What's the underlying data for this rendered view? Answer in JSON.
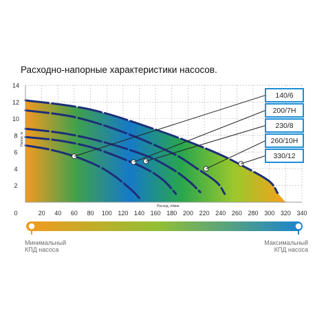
{
  "chart_data": {
    "type": "line",
    "title": "Расходно-напорные характеристики насосов.",
    "xlabel": "Расход, л/мин",
    "ylabel": "Напор, м",
    "xlim": [
      0,
      340
    ],
    "ylim": [
      0,
      14
    ],
    "x_ticks": [
      20,
      40,
      60,
      80,
      100,
      120,
      140,
      160,
      180,
      200,
      220,
      240,
      260,
      280,
      300,
      320,
      340
    ],
    "x_zero_label": "0",
    "y_ticks": [
      2,
      4,
      6,
      8,
      10,
      12,
      14
    ],
    "grid": true,
    "series": [
      {
        "name": "140/6",
        "x": [
          0,
          30,
          60,
          90,
          110,
          130,
          140
        ],
        "y": [
          6.8,
          6.3,
          5.5,
          4.3,
          3.1,
          1.5,
          0.5
        ],
        "marker_x": 60,
        "marker_y": 5.5
      },
      {
        "name": "200/7H",
        "x": [
          0,
          40,
          80,
          120,
          150,
          170,
          185
        ],
        "y": [
          7.8,
          7.4,
          6.6,
          5.2,
          3.9,
          2.6,
          1.0
        ],
        "marker_x": 133,
        "marker_y": 4.8
      },
      {
        "name": "230/8",
        "x": [
          0,
          50,
          100,
          150,
          180,
          200,
          215
        ],
        "y": [
          8.8,
          8.2,
          7.1,
          5.5,
          4.0,
          2.6,
          1.2
        ],
        "marker_x": 148,
        "marker_y": 4.9
      },
      {
        "name": "260/10H",
        "x": [
          0,
          60,
          120,
          180,
          210,
          235,
          245
        ],
        "y": [
          11.0,
          10.2,
          8.4,
          5.9,
          4.1,
          2.4,
          1.0
        ],
        "marker_x": 222,
        "marker_y": 4.0
      },
      {
        "name": "330/12",
        "x": [
          0,
          80,
          160,
          230,
          270,
          300,
          310
        ],
        "y": [
          12.2,
          11.1,
          8.7,
          6.1,
          4.2,
          2.5,
          1.1
        ],
        "marker_x": 265,
        "marker_y": 4.6
      }
    ],
    "efficiency_scale": {
      "min_label_line1": "Минимальный",
      "min_label_line2": "КПД насоса",
      "max_label_line1": "Максимальный",
      "max_label_line2": "КПД насоса"
    },
    "colors": {
      "low_efficiency": "#f39a1e",
      "mid_efficiency": "#54b53b",
      "high_efficiency": "#0b73c8",
      "curve": "#1d2f78",
      "callout_border": "#1b8fd4"
    }
  }
}
